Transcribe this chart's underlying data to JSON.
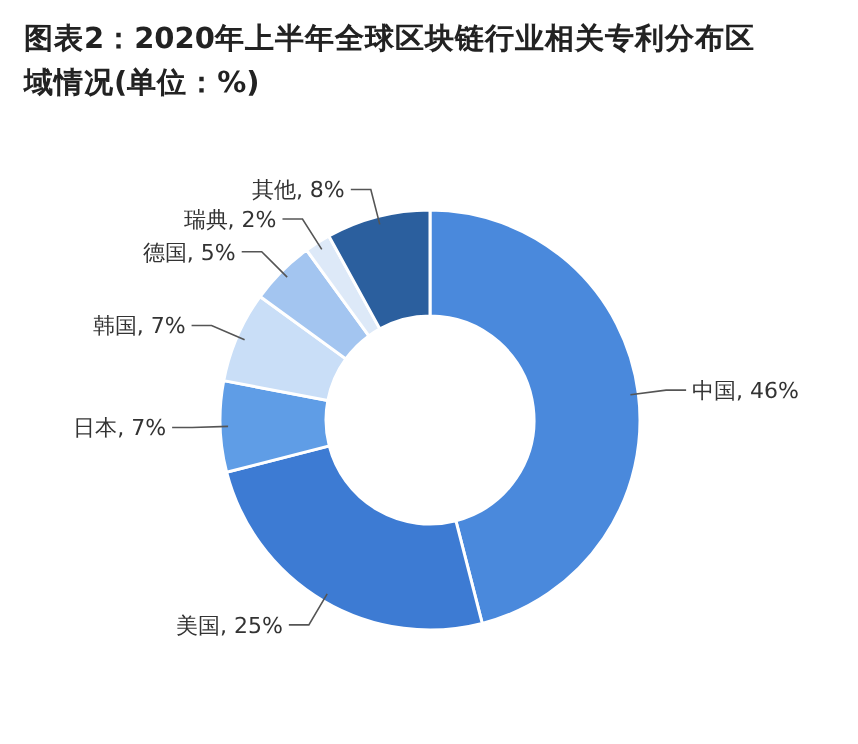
{
  "chart_data": {
    "type": "donut",
    "title": "图表2：2020年上半年全球区块链行业相关专利分布区域情况(单位：%)",
    "categories": [
      "中国",
      "美国",
      "日本",
      "韩国",
      "德国",
      "瑞典",
      "其他"
    ],
    "values": [
      46,
      25,
      7,
      7,
      5,
      2,
      8
    ],
    "colors": [
      "#4a89dc",
      "#3d7bd3",
      "#5f9de6",
      "#c9def7",
      "#a3c5f0",
      "#dde9f8",
      "#2b5f9e"
    ],
    "value_labels": [
      ", 46%",
      ", 25%",
      ", 7%",
      ", 7%",
      ", 5%",
      ", 2%",
      ", 8%"
    ]
  }
}
